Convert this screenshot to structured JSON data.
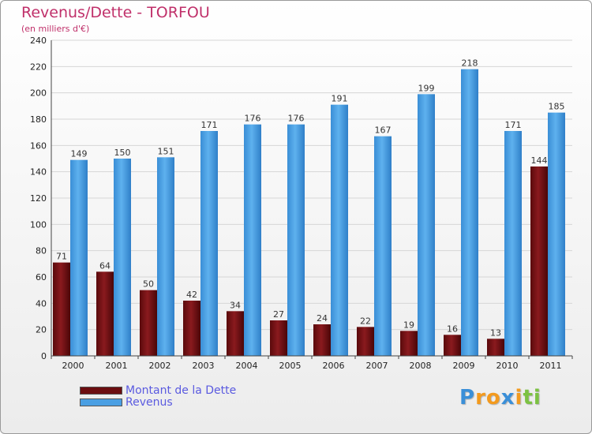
{
  "chart_data": {
    "type": "bar",
    "title": "Revenus/Dette - TORFOU",
    "subtitle": "(en milliers d'€)",
    "categories": [
      "2000",
      "2001",
      "2002",
      "2003",
      "2004",
      "2005",
      "2006",
      "2007",
      "2008",
      "2009",
      "2010",
      "2011"
    ],
    "series": [
      {
        "name": "Montant de la Dette",
        "color": "#6b0d10",
        "values": [
          71,
          64,
          50,
          42,
          34,
          27,
          24,
          22,
          19,
          16,
          13,
          144
        ]
      },
      {
        "name": "Revenus",
        "color": "#4a9fe3",
        "values": [
          149,
          150,
          151,
          171,
          176,
          176,
          191,
          167,
          199,
          218,
          171,
          185
        ]
      }
    ],
    "ylim": [
      0,
      240
    ],
    "yticks": [
      0,
      20,
      40,
      60,
      80,
      100,
      120,
      140,
      160,
      180,
      200,
      220,
      240
    ],
    "grid": true,
    "legend_position": "bottom-left"
  },
  "logo": {
    "text": "Proxiti",
    "letters": [
      {
        "ch": "P",
        "color": "#3a8fd8"
      },
      {
        "ch": "r",
        "color": "#f39a1e"
      },
      {
        "ch": "o",
        "color": "#f39a1e"
      },
      {
        "ch": "x",
        "color": "#3a8fd8"
      },
      {
        "ch": "i",
        "color": "#f39a1e"
      },
      {
        "ch": "t",
        "color": "#7cc242"
      },
      {
        "ch": "i",
        "color": "#7cc242"
      }
    ]
  }
}
